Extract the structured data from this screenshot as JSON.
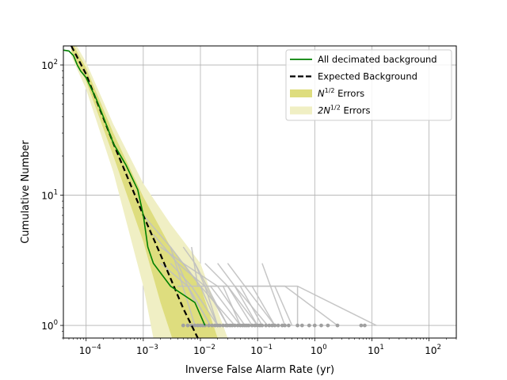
{
  "chart_data": {
    "type": "line",
    "title": "",
    "xlabel": "Inverse False Alarm Rate (yr)",
    "ylabel": "Cumulative Number",
    "xscale": "log",
    "yscale": "log",
    "xlim": [
      4e-05,
      300
    ],
    "ylim": [
      0.8,
      140
    ],
    "grid": true,
    "legend_position": "top-right",
    "x_ticks": [
      {
        "value": 0.0001,
        "base": "10",
        "exp": "−4"
      },
      {
        "value": 0.001,
        "base": "10",
        "exp": "−3"
      },
      {
        "value": 0.01,
        "base": "10",
        "exp": "−2"
      },
      {
        "value": 0.1,
        "base": "10",
        "exp": "−1"
      },
      {
        "value": 1,
        "base": "10",
        "exp": "0"
      },
      {
        "value": 10,
        "base": "10",
        "exp": "1"
      },
      {
        "value": 100,
        "base": "10",
        "exp": "2"
      }
    ],
    "y_ticks": [
      {
        "value": 1,
        "base": "10",
        "exp": "0"
      },
      {
        "value": 10,
        "base": "10",
        "exp": "1"
      },
      {
        "value": 100,
        "base": "10",
        "exp": "2"
      }
    ],
    "legend": [
      {
        "label": "All decimated background",
        "kind": "line",
        "color": "#008000",
        "dash": false
      },
      {
        "label": "Expected Background",
        "kind": "line",
        "color": "#000000",
        "dash": true
      },
      {
        "label_base": "N",
        "label_sup": "1/2",
        "label_rest": " Errors",
        "kind": "band",
        "color": "#dedd7e"
      },
      {
        "label_base": "2N",
        "label_sup": "1/2",
        "label_rest": " Errors",
        "kind": "band",
        "color": "#f0efc4"
      }
    ],
    "expected_background": {
      "color": "#000000",
      "x": [
        5.5e-05,
        0.0001,
        0.0003,
        0.001,
        0.002,
        0.005,
        0.009
      ],
      "y": [
        140,
        85,
        25,
        7,
        3.5,
        1.35,
        0.8
      ]
    },
    "band_1sigma": {
      "color": "#dedd7e",
      "x_hi": [
        5.5e-05,
        0.0001,
        0.0003,
        0.001,
        0.003,
        0.01,
        0.02
      ],
      "y_hi": [
        152,
        95,
        30,
        9.7,
        4.0,
        2.0,
        0.8
      ],
      "x_lo": [
        5.5e-05,
        0.0001,
        0.0003,
        0.001,
        0.002,
        0.0032
      ],
      "y_lo": [
        128,
        75,
        20,
        4.4,
        1.5,
        0.8
      ]
    },
    "band_2sigma": {
      "color": "#f0efc4",
      "x_hi": [
        5.5e-05,
        0.0001,
        0.0003,
        0.001,
        0.003,
        0.01,
        0.03
      ],
      "y_hi": [
        165,
        105,
        35,
        12.3,
        6.0,
        3.0,
        0.8
      ],
      "x_lo": [
        5.5e-05,
        0.0001,
        0.0003,
        0.001,
        0.0015
      ],
      "y_lo": [
        117,
        65,
        15,
        2.0,
        0.8
      ]
    },
    "series": [
      {
        "name": "All decimated background",
        "color": "#008000",
        "x": [
          4e-05,
          5e-05,
          6e-05,
          7e-05,
          8e-05,
          0.0001,
          0.00015,
          0.0002,
          0.0003,
          0.0005,
          0.0008,
          0.001,
          0.0012,
          0.0015,
          0.003,
          0.008,
          0.012
        ],
        "y": [
          130,
          128,
          118,
          100,
          90,
          80,
          55,
          40,
          25,
          17,
          11,
          7,
          4,
          3,
          2,
          1.5,
          1.0
        ]
      }
    ],
    "background_lines": {
      "color": "#c0c0c0",
      "lines": [
        {
          "x": [
            0.001,
            0.003,
            0.008
          ],
          "y": [
            7,
            4,
            1
          ]
        },
        {
          "x": [
            0.0015,
            0.004,
            0.012
          ],
          "y": [
            5,
            3,
            1
          ]
        },
        {
          "x": [
            0.002,
            0.005,
            0.01,
            0.02
          ],
          "y": [
            4,
            3,
            2,
            1
          ]
        },
        {
          "x": [
            0.002,
            0.006,
            0.015
          ],
          "y": [
            3,
            2,
            1
          ]
        },
        {
          "x": [
            0.003,
            0.007,
            0.02
          ],
          "y": [
            3,
            2,
            1
          ]
        },
        {
          "x": [
            0.003,
            0.01,
            0.04
          ],
          "y": [
            4,
            2,
            1
          ]
        },
        {
          "x": [
            0.004,
            0.012,
            0.03
          ],
          "y": [
            3,
            2,
            1
          ]
        },
        {
          "x": [
            0.004,
            0.006,
            0.015
          ],
          "y": [
            2,
            2,
            1
          ]
        },
        {
          "x": [
            0.005,
            0.02,
            0.06
          ],
          "y": [
            3,
            2,
            1
          ]
        },
        {
          "x": [
            0.006,
            0.015,
            0.05
          ],
          "y": [
            2,
            2,
            1
          ]
        },
        {
          "x": [
            0.008,
            0.012,
            0.02
          ],
          "y": [
            3,
            2,
            1
          ]
        },
        {
          "x": [
            0.01,
            0.03,
            0.1
          ],
          "y": [
            2,
            2,
            1
          ]
        },
        {
          "x": [
            0.012,
            0.03,
            0.08
          ],
          "y": [
            3,
            2,
            1
          ]
        },
        {
          "x": [
            0.015,
            0.05,
            0.12
          ],
          "y": [
            2,
            2,
            1
          ]
        },
        {
          "x": [
            0.02,
            0.04,
            0.15
          ],
          "y": [
            3,
            2,
            1
          ]
        },
        {
          "x": [
            0.025,
            0.05
          ],
          "y": [
            2,
            1
          ]
        },
        {
          "x": [
            0.03,
            0.06,
            0.2
          ],
          "y": [
            3,
            2,
            1
          ]
        },
        {
          "x": [
            0.04,
            0.1
          ],
          "y": [
            2,
            1
          ]
        },
        {
          "x": [
            0.05,
            0.3,
            2.5
          ],
          "y": [
            2,
            2,
            1
          ]
        },
        {
          "x": [
            0.06,
            0.5,
            12
          ],
          "y": [
            2,
            2,
            1
          ]
        },
        {
          "x": [
            0.08,
            0.2
          ],
          "y": [
            2,
            1
          ]
        },
        {
          "x": [
            0.12,
            0.3
          ],
          "y": [
            3,
            1
          ]
        },
        {
          "x": [
            0.2,
            0.4
          ],
          "y": [
            2,
            1
          ]
        },
        {
          "x": [
            0.5,
            0.5
          ],
          "y": [
            2,
            1
          ]
        },
        {
          "x": [
            0.007,
            0.009
          ],
          "y": [
            4,
            2
          ]
        },
        {
          "x": [
            0.005,
            0.008,
            0.03
          ],
          "y": [
            4,
            3,
            1
          ]
        }
      ]
    },
    "background_points": {
      "color": "#a0a0a0",
      "y": 1,
      "x": [
        0.005,
        0.006,
        0.007,
        0.008,
        0.009,
        0.01,
        0.011,
        0.012,
        0.014,
        0.016,
        0.018,
        0.02,
        0.022,
        0.025,
        0.028,
        0.03,
        0.033,
        0.036,
        0.04,
        0.045,
        0.05,
        0.055,
        0.06,
        0.065,
        0.07,
        0.08,
        0.09,
        0.1,
        0.11,
        0.12,
        0.14,
        0.16,
        0.18,
        0.2,
        0.23,
        0.27,
        0.3,
        0.35,
        0.5,
        0.6,
        0.8,
        1.0,
        1.3,
        1.7,
        2.5,
        6.5,
        7.5
      ]
    }
  }
}
